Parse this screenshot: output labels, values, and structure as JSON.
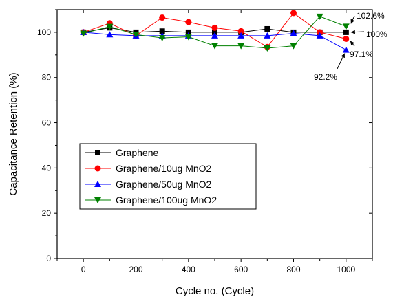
{
  "chart_data": {
    "type": "line",
    "xlabel": "Cycle no. (Cycle)",
    "ylabel": "Capacitance Retention (%)",
    "xlim": [
      -100,
      1100
    ],
    "ylim": [
      0,
      110
    ],
    "xticks": [
      0,
      200,
      400,
      600,
      800,
      1000
    ],
    "yticks": [
      0,
      20,
      40,
      60,
      80,
      100
    ],
    "grid": false,
    "legend_position": "center-left",
    "x": [
      0,
      100,
      200,
      300,
      400,
      500,
      600,
      700,
      800,
      900,
      1000
    ],
    "series": [
      {
        "name": "Graphene",
        "color": "#000000",
        "marker": "square",
        "values": [
          100,
          102,
          100,
          100.5,
          100,
          100,
          100,
          101.5,
          100,
          100,
          100
        ]
      },
      {
        "name": "Graphene/10ug MnO2",
        "color": "#ff0000",
        "marker": "circle",
        "values": [
          100,
          104,
          98.5,
          106.5,
          104.5,
          102,
          100.5,
          93.5,
          108.5,
          100,
          97.1
        ]
      },
      {
        "name": "Graphene/50ug MnO2",
        "color": "#0000ff",
        "marker": "triangle-up",
        "values": [
          100,
          99,
          98.5,
          98.5,
          98.5,
          98.5,
          98.5,
          98.5,
          99.5,
          98.5,
          92.2
        ]
      },
      {
        "name": "Graphene/100ug MnO2",
        "color": "#008000",
        "marker": "triangle-down",
        "values": [
          99.5,
          102.5,
          99,
          97.5,
          98,
          94,
          94,
          93,
          94,
          107,
          102.6
        ]
      }
    ],
    "annotations": [
      {
        "text": "102.6%"
      },
      {
        "text": "100%"
      },
      {
        "text": "97.1%"
      },
      {
        "text": "92.2%"
      }
    ]
  }
}
